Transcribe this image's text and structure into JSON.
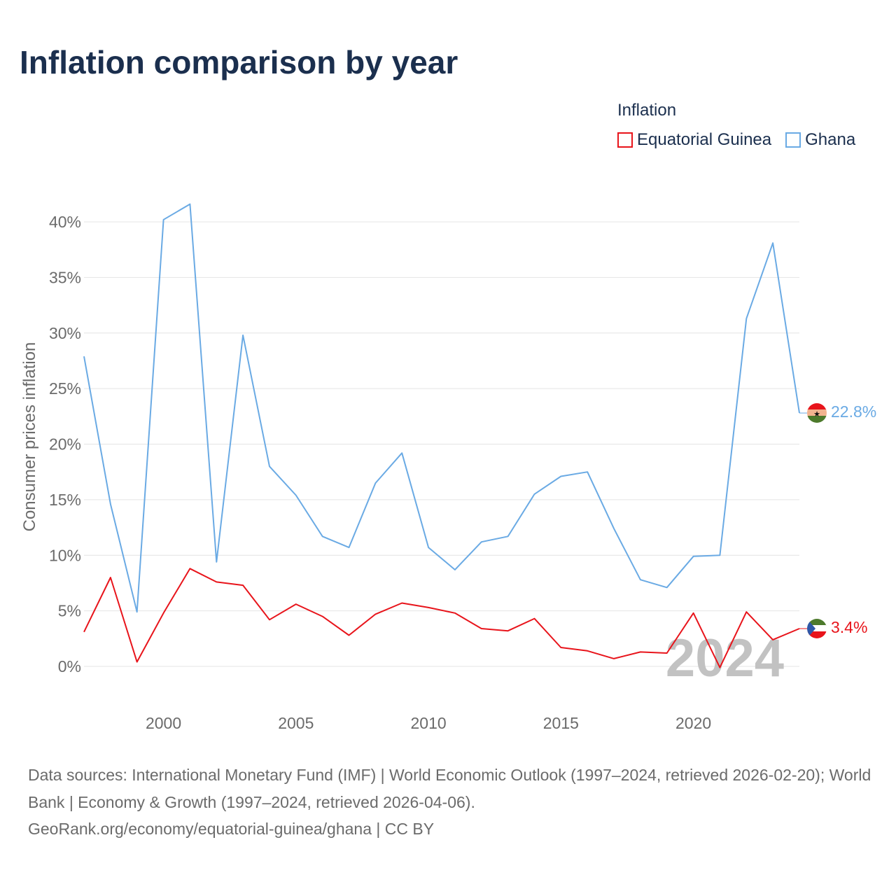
{
  "title": "Inflation comparison by year",
  "legend": {
    "title": "Inflation",
    "items": [
      {
        "label": "Equatorial Guinea",
        "color": "#e8141b"
      },
      {
        "label": "Ghana",
        "color": "#6aaae4"
      }
    ]
  },
  "chart_data": {
    "type": "line",
    "ylabel": "Consumer prices inflation",
    "xlabel": "",
    "ylim": [
      -3,
      44
    ],
    "xlim": [
      1997,
      2024
    ],
    "y_ticks": [
      0,
      5,
      10,
      15,
      20,
      25,
      30,
      35,
      40
    ],
    "y_tick_labels": [
      "0%",
      "5%",
      "10%",
      "15%",
      "20%",
      "25%",
      "30%",
      "35%",
      "40%"
    ],
    "x_ticks": [
      2000,
      2005,
      2010,
      2015,
      2020
    ],
    "x_tick_labels": [
      "2000",
      "2005",
      "2010",
      "2015",
      "2020"
    ],
    "grid": true,
    "watermark_year": "2024",
    "x": [
      1997,
      1998,
      1999,
      2000,
      2001,
      2002,
      2003,
      2004,
      2005,
      2006,
      2007,
      2008,
      2009,
      2010,
      2011,
      2012,
      2013,
      2014,
      2015,
      2016,
      2017,
      2018,
      2019,
      2020,
      2021,
      2022,
      2023,
      2024
    ],
    "series": [
      {
        "name": "Equatorial Guinea",
        "color": "#e8141b",
        "end_label": "3.4%",
        "values": [
          3.1,
          8.0,
          0.4,
          4.8,
          8.8,
          7.6,
          7.3,
          4.2,
          5.6,
          4.5,
          2.8,
          4.7,
          5.7,
          5.3,
          4.8,
          3.4,
          3.2,
          4.3,
          1.7,
          1.4,
          0.7,
          1.3,
          1.2,
          4.8,
          -0.1,
          4.9,
          2.4,
          3.4
        ]
      },
      {
        "name": "Ghana",
        "color": "#6aaae4",
        "end_label": "22.8%",
        "values": [
          27.9,
          14.6,
          4.9,
          40.2,
          41.6,
          9.4,
          29.8,
          18.0,
          15.4,
          11.7,
          10.7,
          16.5,
          19.2,
          10.7,
          8.7,
          11.2,
          11.7,
          15.5,
          17.1,
          17.5,
          12.4,
          7.8,
          7.1,
          9.9,
          10.0,
          31.3,
          38.1,
          22.8
        ]
      }
    ]
  },
  "footer": {
    "line1": "Data sources: International Monetary Fund (IMF) | World Economic Outlook (1997–2024, retrieved 2026-02-20); World Bank | Economy & Growth (1997–2024, retrieved 2026-04-06).",
    "line2": "GeoRank.org/economy/equatorial-guinea/ghana | CC BY"
  }
}
